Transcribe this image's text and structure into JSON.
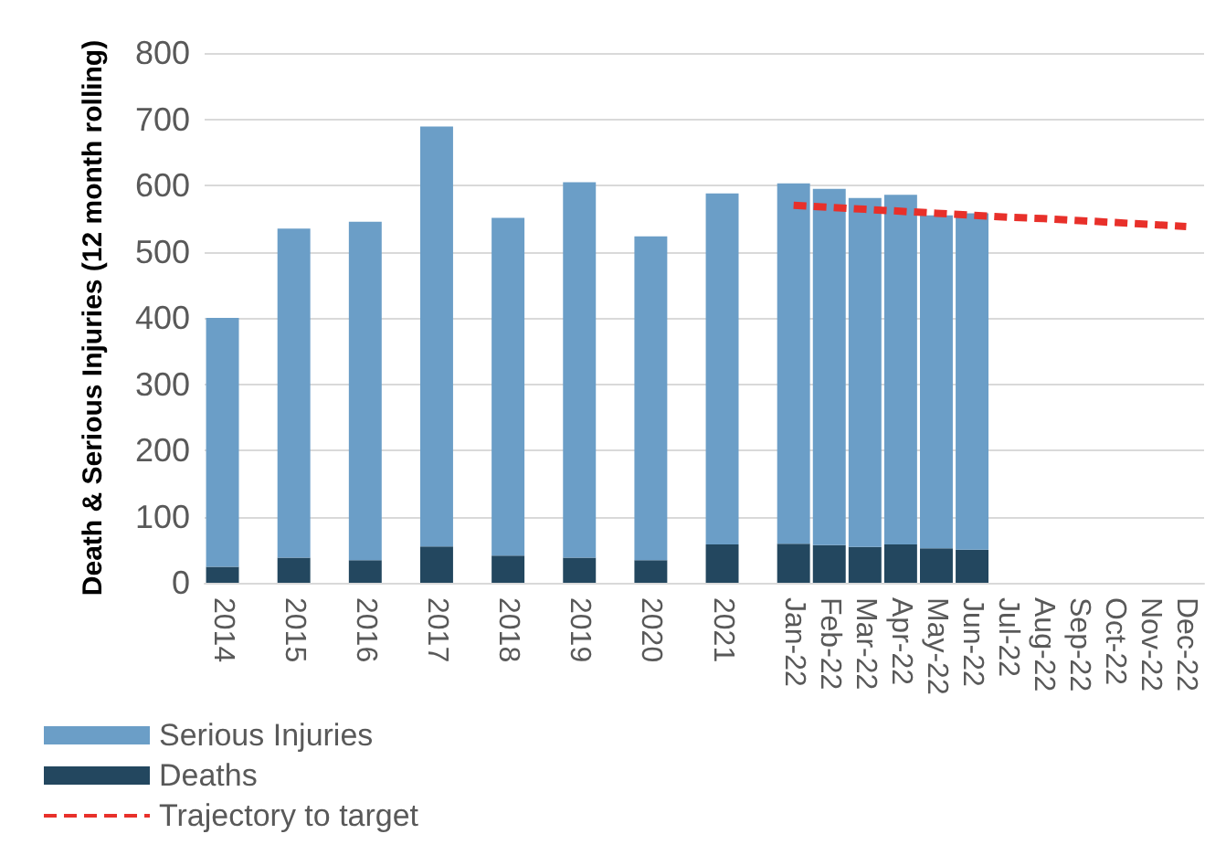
{
  "chart_data": {
    "type": "bar",
    "stacked": true,
    "ylabel": "Death & Serious Injuries (12 month rolling)",
    "categories": [
      "2014",
      null,
      "2015",
      null,
      "2016",
      null,
      "2017",
      null,
      "2018",
      null,
      "2019",
      null,
      "2020",
      null,
      "2021",
      null,
      "Jan-22",
      "Feb-22",
      "Mar-22",
      "Apr-22",
      "May-22",
      "Jun-22",
      "Jul-22",
      "Aug-22",
      "Sep-22",
      "Oct-22",
      "Nov-22",
      "Dec-22"
    ],
    "series": [
      {
        "name": "Deaths",
        "color": "#23475f",
        "values": [
          24,
          null,
          38,
          null,
          34,
          null,
          55,
          null,
          41,
          null,
          38,
          null,
          34,
          null,
          58,
          null,
          59,
          57,
          54,
          58,
          52,
          50,
          null,
          null,
          null,
          null,
          null,
          null
        ]
      },
      {
        "name": "Serious Injuries",
        "color": "#6b9ec7",
        "values": [
          376,
          null,
          497,
          null,
          511,
          null,
          634,
          null,
          510,
          null,
          567,
          null,
          489,
          null,
          530,
          null,
          544,
          538,
          527,
          528,
          503,
          508,
          null,
          null,
          null,
          null,
          null,
          null
        ]
      },
      {
        "name": "Trajectory to target",
        "type": "line",
        "color": "#e8302a",
        "line_style": "dashed",
        "marker": "none",
        "values": [
          null,
          null,
          null,
          null,
          null,
          null,
          null,
          null,
          null,
          null,
          null,
          null,
          null,
          null,
          null,
          null,
          570,
          567,
          564,
          561,
          558,
          555,
          552,
          550,
          547,
          544,
          541,
          538
        ]
      }
    ],
    "ylim": [
      0,
      800
    ],
    "yticks": [
      0,
      100,
      200,
      300,
      400,
      500,
      600,
      700,
      800
    ],
    "grid": "y",
    "legend": "bottom left"
  }
}
